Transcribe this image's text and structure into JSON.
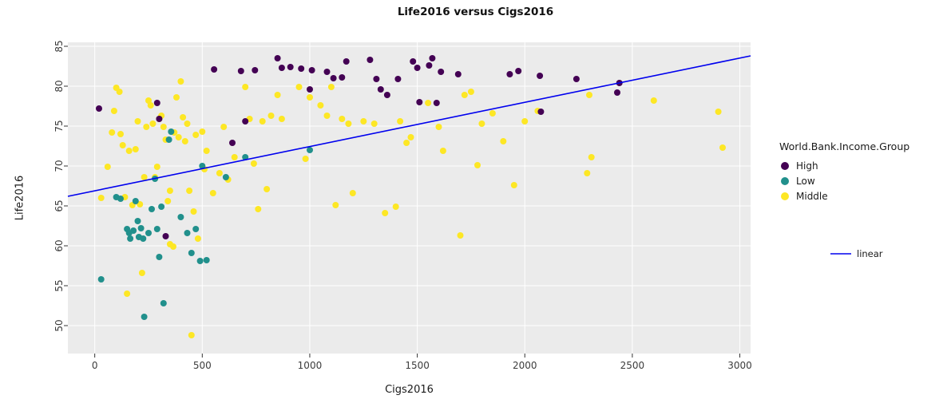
{
  "chart_data": {
    "type": "scatter",
    "title": "Life2016 versus Cigs2016",
    "xlabel": "Cigs2016",
    "ylabel": "Life2016",
    "xlim": [
      -125,
      3050
    ],
    "ylim": [
      46.5,
      85.5
    ],
    "xticks": [
      0,
      500,
      1000,
      1500,
      2000,
      2500,
      3000
    ],
    "yticks": [
      50,
      55,
      60,
      65,
      70,
      75,
      80,
      85
    ],
    "panel_bg": "#ebebeb",
    "grid_color": "#ffffff",
    "tick_color": "#333333",
    "legend_title": "World.Bank.Income.Group",
    "legend_position": "right",
    "grid": "on",
    "series": [
      {
        "name": "High",
        "color": "#440154",
        "points": [
          [
            20,
            77.2
          ],
          [
            290,
            77.9
          ],
          [
            300,
            75.9
          ],
          [
            330,
            61.2
          ],
          [
            555,
            82.1
          ],
          [
            640,
            72.9
          ],
          [
            680,
            81.9
          ],
          [
            700,
            75.6
          ],
          [
            745,
            82.0
          ],
          [
            850,
            83.5
          ],
          [
            870,
            82.3
          ],
          [
            910,
            82.4
          ],
          [
            960,
            82.2
          ],
          [
            1000,
            79.6
          ],
          [
            1010,
            82.0
          ],
          [
            1080,
            81.8
          ],
          [
            1110,
            81.0
          ],
          [
            1150,
            81.1
          ],
          [
            1170,
            83.1
          ],
          [
            1280,
            83.3
          ],
          [
            1310,
            80.9
          ],
          [
            1330,
            79.6
          ],
          [
            1360,
            78.9
          ],
          [
            1410,
            80.9
          ],
          [
            1480,
            83.1
          ],
          [
            1500,
            82.3
          ],
          [
            1510,
            78.0
          ],
          [
            1555,
            82.6
          ],
          [
            1570,
            83.5
          ],
          [
            1590,
            77.9
          ],
          [
            1610,
            81.8
          ],
          [
            1690,
            81.5
          ],
          [
            1930,
            81.5
          ],
          [
            1970,
            81.9
          ],
          [
            2070,
            81.3
          ],
          [
            2075,
            76.8
          ],
          [
            2240,
            80.9
          ],
          [
            2430,
            79.2
          ],
          [
            2440,
            80.4
          ]
        ]
      },
      {
        "name": "Low",
        "color": "#21908c",
        "points": [
          [
            30,
            55.8
          ],
          [
            100,
            66.1
          ],
          [
            120,
            65.9
          ],
          [
            150,
            62.1
          ],
          [
            160,
            61.6
          ],
          [
            165,
            60.9
          ],
          [
            180,
            61.9
          ],
          [
            190,
            65.6
          ],
          [
            200,
            63.1
          ],
          [
            205,
            61.1
          ],
          [
            215,
            62.2
          ],
          [
            225,
            60.9
          ],
          [
            230,
            51.1
          ],
          [
            250,
            61.6
          ],
          [
            265,
            64.6
          ],
          [
            280,
            68.4
          ],
          [
            290,
            62.1
          ],
          [
            300,
            58.6
          ],
          [
            310,
            64.9
          ],
          [
            320,
            52.8
          ],
          [
            345,
            73.3
          ],
          [
            355,
            74.3
          ],
          [
            400,
            63.6
          ],
          [
            430,
            61.6
          ],
          [
            450,
            59.1
          ],
          [
            470,
            62.1
          ],
          [
            490,
            58.1
          ],
          [
            500,
            70.0
          ],
          [
            520,
            58.2
          ],
          [
            610,
            68.6
          ],
          [
            700,
            71.1
          ],
          [
            1000,
            72.0
          ]
        ]
      },
      {
        "name": "Middle",
        "color": "#fde725",
        "points": [
          [
            30,
            66.0
          ],
          [
            60,
            69.9
          ],
          [
            80,
            74.2
          ],
          [
            90,
            76.9
          ],
          [
            100,
            79.8
          ],
          [
            115,
            79.3
          ],
          [
            120,
            74.0
          ],
          [
            130,
            72.6
          ],
          [
            140,
            66.1
          ],
          [
            150,
            54.0
          ],
          [
            160,
            71.9
          ],
          [
            175,
            65.1
          ],
          [
            190,
            72.1
          ],
          [
            200,
            75.6
          ],
          [
            210,
            65.2
          ],
          [
            220,
            56.6
          ],
          [
            230,
            68.6
          ],
          [
            240,
            74.9
          ],
          [
            250,
            78.2
          ],
          [
            260,
            77.6
          ],
          [
            270,
            75.3
          ],
          [
            280,
            68.6
          ],
          [
            290,
            69.9
          ],
          [
            300,
            75.9
          ],
          [
            310,
            76.3
          ],
          [
            320,
            74.9
          ],
          [
            330,
            73.3
          ],
          [
            340,
            65.6
          ],
          [
            350,
            66.9
          ],
          [
            350,
            60.2
          ],
          [
            365,
            59.9
          ],
          [
            370,
            74.2
          ],
          [
            380,
            78.6
          ],
          [
            390,
            73.6
          ],
          [
            400,
            80.6
          ],
          [
            410,
            76.1
          ],
          [
            420,
            73.1
          ],
          [
            430,
            75.3
          ],
          [
            440,
            66.9
          ],
          [
            450,
            48.8
          ],
          [
            460,
            64.3
          ],
          [
            470,
            73.9
          ],
          [
            480,
            60.9
          ],
          [
            500,
            74.3
          ],
          [
            510,
            69.6
          ],
          [
            520,
            71.9
          ],
          [
            550,
            66.6
          ],
          [
            580,
            69.1
          ],
          [
            600,
            74.9
          ],
          [
            620,
            68.3
          ],
          [
            650,
            71.1
          ],
          [
            700,
            79.9
          ],
          [
            720,
            75.9
          ],
          [
            740,
            70.3
          ],
          [
            760,
            64.6
          ],
          [
            780,
            75.6
          ],
          [
            800,
            67.1
          ],
          [
            820,
            76.3
          ],
          [
            850,
            78.9
          ],
          [
            870,
            75.9
          ],
          [
            950,
            79.9
          ],
          [
            980,
            70.9
          ],
          [
            1000,
            78.6
          ],
          [
            1050,
            77.6
          ],
          [
            1080,
            76.3
          ],
          [
            1100,
            79.9
          ],
          [
            1120,
            65.1
          ],
          [
            1150,
            75.9
          ],
          [
            1180,
            75.3
          ],
          [
            1200,
            66.6
          ],
          [
            1250,
            75.6
          ],
          [
            1300,
            75.3
          ],
          [
            1350,
            64.1
          ],
          [
            1400,
            64.9
          ],
          [
            1420,
            75.6
          ],
          [
            1450,
            72.9
          ],
          [
            1470,
            73.6
          ],
          [
            1550,
            77.9
          ],
          [
            1600,
            74.9
          ],
          [
            1620,
            71.9
          ],
          [
            1700,
            61.3
          ],
          [
            1720,
            78.9
          ],
          [
            1750,
            79.3
          ],
          [
            1780,
            70.1
          ],
          [
            1800,
            75.3
          ],
          [
            1850,
            76.6
          ],
          [
            1900,
            73.1
          ],
          [
            1950,
            67.6
          ],
          [
            2000,
            75.6
          ],
          [
            2060,
            76.9
          ],
          [
            2300,
            78.9
          ],
          [
            2310,
            71.1
          ],
          [
            2290,
            69.1
          ],
          [
            2600,
            78.2
          ],
          [
            2900,
            76.8
          ],
          [
            2920,
            72.3
          ]
        ]
      }
    ],
    "line": {
      "label": "linear",
      "color": "#0000ee",
      "x": [
        -125,
        3050
      ],
      "y": [
        66.2,
        83.8
      ]
    }
  }
}
